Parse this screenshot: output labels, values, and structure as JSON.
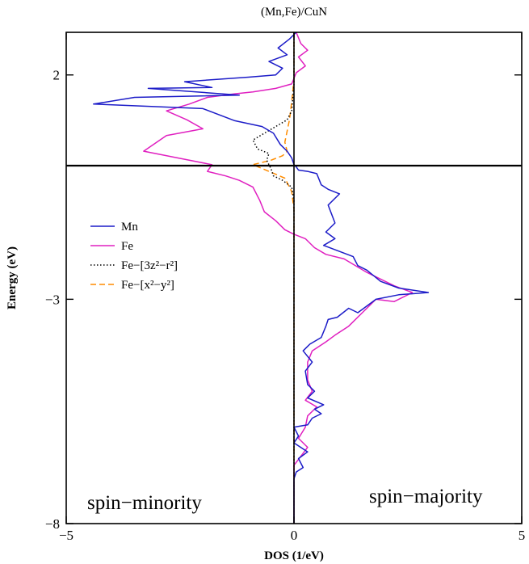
{
  "chart_data": {
    "type": "line",
    "title": "(Mn,Fe)/CuN",
    "xlabel": "DOS (1/eV)",
    "ylabel": "Energy (eV)",
    "xlim": [
      -5,
      5
    ],
    "ylim": [
      -8,
      2.95
    ],
    "xticks": [
      -5,
      0,
      5
    ],
    "yticks": [
      2,
      -3,
      -8
    ],
    "fermi_level": 0,
    "grid": false,
    "legend_position": "left-middle",
    "annotations": [
      {
        "text": "spin−minority",
        "position": "bottom-left"
      },
      {
        "text": "spin−majority",
        "position": "bottom-right"
      }
    ],
    "series": [
      {
        "name": "Mn",
        "color": "#1c1cc8",
        "style": "solid",
        "points": [
          [
            0.05,
            2.95
          ],
          [
            -0.1,
            2.8
          ],
          [
            -0.35,
            2.6
          ],
          [
            -0.15,
            2.45
          ],
          [
            -0.55,
            2.3
          ],
          [
            -0.25,
            2.15
          ],
          [
            -0.4,
            2.0
          ],
          [
            -1.0,
            1.95
          ],
          [
            -2.4,
            1.85
          ],
          [
            -1.8,
            1.72
          ],
          [
            -3.2,
            1.7
          ],
          [
            -1.2,
            1.55
          ],
          [
            -3.5,
            1.5
          ],
          [
            -4.4,
            1.35
          ],
          [
            -2.0,
            1.25
          ],
          [
            -1.3,
            0.98
          ],
          [
            -0.7,
            0.85
          ],
          [
            -0.45,
            0.7
          ],
          [
            -0.3,
            0.45
          ],
          [
            -0.15,
            0.3
          ],
          [
            -0.05,
            0.15
          ],
          [
            0.0,
            0.0
          ],
          [
            0.05,
            -0.05
          ],
          [
            0.1,
            -0.12
          ],
          [
            0.3,
            -0.15
          ],
          [
            0.5,
            -0.2
          ],
          [
            0.6,
            -0.45
          ],
          [
            0.75,
            -0.55
          ],
          [
            1.0,
            -0.65
          ],
          [
            0.75,
            -0.9
          ],
          [
            0.9,
            -1.3
          ],
          [
            0.7,
            -1.5
          ],
          [
            0.9,
            -1.65
          ],
          [
            0.65,
            -1.8
          ],
          [
            1.3,
            -2.05
          ],
          [
            1.4,
            -2.25
          ],
          [
            1.6,
            -2.35
          ],
          [
            1.9,
            -2.6
          ],
          [
            2.3,
            -2.75
          ],
          [
            2.95,
            -2.85
          ],
          [
            2.3,
            -2.9
          ],
          [
            1.8,
            -3.0
          ],
          [
            1.4,
            -3.3
          ],
          [
            1.2,
            -3.2
          ],
          [
            0.95,
            -3.4
          ],
          [
            0.75,
            -3.45
          ],
          [
            0.7,
            -3.6
          ],
          [
            0.6,
            -3.85
          ],
          [
            0.35,
            -4.0
          ],
          [
            0.2,
            -4.15
          ],
          [
            0.4,
            -4.4
          ],
          [
            0.25,
            -4.6
          ],
          [
            0.3,
            -4.9
          ],
          [
            0.45,
            -5.05
          ],
          [
            0.3,
            -5.2
          ],
          [
            0.65,
            -5.35
          ],
          [
            0.45,
            -5.45
          ],
          [
            0.6,
            -5.55
          ],
          [
            0.4,
            -5.65
          ],
          [
            0.3,
            -5.8
          ],
          [
            0.0,
            -5.85
          ],
          [
            0.1,
            -6.05
          ],
          [
            0.0,
            -6.2
          ],
          [
            0.3,
            -6.4
          ],
          [
            0.1,
            -6.55
          ],
          [
            0.2,
            -6.75
          ],
          [
            0.05,
            -6.85
          ],
          [
            0.0,
            -7.0
          ],
          [
            0.0,
            -8.0
          ]
        ]
      },
      {
        "name": "Fe",
        "color": "#e020c0",
        "style": "solid",
        "points": [
          [
            0.05,
            2.95
          ],
          [
            0.15,
            2.7
          ],
          [
            0.3,
            2.55
          ],
          [
            0.1,
            2.4
          ],
          [
            0.25,
            2.2
          ],
          [
            0.05,
            2.05
          ],
          [
            -0.05,
            1.8
          ],
          [
            -0.4,
            1.7
          ],
          [
            -0.9,
            1.62
          ],
          [
            -1.3,
            1.58
          ],
          [
            -1.9,
            1.5
          ],
          [
            -2.3,
            1.35
          ],
          [
            -2.8,
            1.2
          ],
          [
            -2.35,
            1.0
          ],
          [
            -2.0,
            0.8
          ],
          [
            -2.8,
            0.65
          ],
          [
            -3.3,
            0.3
          ],
          [
            -2.4,
            0.12
          ],
          [
            -1.8,
            0.0
          ],
          [
            -1.9,
            -0.15
          ],
          [
            -1.5,
            -0.25
          ],
          [
            -1.2,
            -0.35
          ],
          [
            -0.9,
            -0.5
          ],
          [
            -0.75,
            -0.8
          ],
          [
            -0.65,
            -1.05
          ],
          [
            -0.4,
            -1.25
          ],
          [
            -0.2,
            -1.45
          ],
          [
            0.0,
            -1.55
          ],
          [
            0.25,
            -1.65
          ],
          [
            0.45,
            -1.85
          ],
          [
            0.7,
            -2.0
          ],
          [
            1.1,
            -2.1
          ],
          [
            1.6,
            -2.4
          ],
          [
            2.2,
            -2.7
          ],
          [
            2.6,
            -2.85
          ],
          [
            2.2,
            -3.05
          ],
          [
            1.8,
            -3.0
          ],
          [
            1.5,
            -3.3
          ],
          [
            1.2,
            -3.6
          ],
          [
            0.9,
            -3.8
          ],
          [
            0.7,
            -3.95
          ],
          [
            0.4,
            -4.15
          ],
          [
            0.3,
            -4.4
          ],
          [
            0.3,
            -4.8
          ],
          [
            0.4,
            -5.05
          ],
          [
            0.25,
            -5.25
          ],
          [
            0.5,
            -5.4
          ],
          [
            0.3,
            -5.6
          ],
          [
            0.25,
            -5.85
          ],
          [
            0.1,
            -6.1
          ],
          [
            0.3,
            -6.3
          ],
          [
            0.15,
            -6.5
          ],
          [
            0.0,
            -6.7
          ],
          [
            0.0,
            -8.0
          ]
        ]
      },
      {
        "name": "Fe−[3z²−r²]",
        "color": "#000000",
        "style": "dotted",
        "points": [
          [
            0.0,
            2.95
          ],
          [
            0.0,
            1.8
          ],
          [
            -0.05,
            1.2
          ],
          [
            -0.15,
            1.0
          ],
          [
            -0.35,
            0.88
          ],
          [
            -0.65,
            0.7
          ],
          [
            -0.9,
            0.55
          ],
          [
            -0.8,
            0.35
          ],
          [
            -0.55,
            0.25
          ],
          [
            -0.6,
            0.1
          ],
          [
            -0.5,
            -0.1
          ],
          [
            -0.45,
            -0.25
          ],
          [
            -0.25,
            -0.35
          ],
          [
            -0.05,
            -0.5
          ],
          [
            0.0,
            -0.8
          ],
          [
            0.0,
            -8.0
          ]
        ]
      },
      {
        "name": "Fe−[x²−y²]",
        "color": "#ff8c00",
        "style": "dashed",
        "points": [
          [
            0.0,
            2.95
          ],
          [
            0.0,
            1.9
          ],
          [
            -0.05,
            1.4
          ],
          [
            -0.1,
            1.0
          ],
          [
            -0.2,
            0.5
          ],
          [
            -0.15,
            0.3
          ],
          [
            -0.25,
            0.2
          ],
          [
            -0.5,
            0.1
          ],
          [
            -0.9,
            0.0
          ],
          [
            -0.55,
            -0.15
          ],
          [
            -0.2,
            -0.3
          ],
          [
            -0.05,
            -0.6
          ],
          [
            0.0,
            -1.0
          ],
          [
            0.0,
            -8.0
          ]
        ]
      }
    ]
  }
}
